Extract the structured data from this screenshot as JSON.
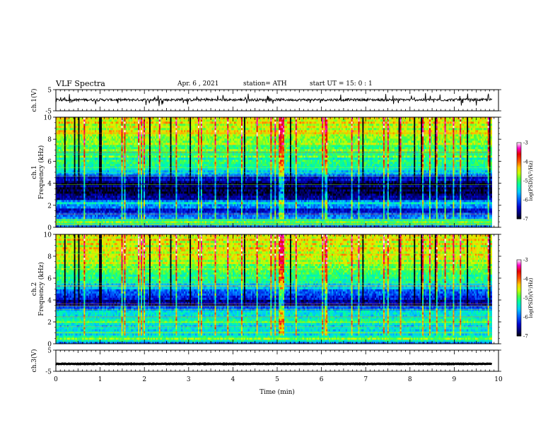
{
  "header": {
    "title": "VLF Spectra",
    "date": "Apr. 6 , 2021",
    "station": "station= ATH",
    "start_ut": "start UT = 15: 0 : 1"
  },
  "chart_data": {
    "type": "heatmap",
    "x_axis": {
      "label": "Time (min)",
      "range": [
        0,
        10
      ],
      "ticks": [
        "0",
        "1",
        "2",
        "3",
        "4",
        "5",
        "6",
        "7",
        "8",
        "9",
        "10"
      ]
    },
    "panels": [
      {
        "id": "ch1-waveform",
        "type": "line",
        "ylabel": "ch.1(V)",
        "ylim": [
          -5,
          5
        ],
        "yticks": [
          "5",
          "-5"
        ],
        "baseline_value": 0.2,
        "noise_amplitude": 1.2,
        "data_extent_min": 9.85
      },
      {
        "id": "ch1-spectrogram",
        "type": "heatmap",
        "ylabel": "ch.1\nFrequency (kHz)",
        "ylim": [
          0,
          10
        ],
        "yticks": [
          "0",
          "2",
          "4",
          "6",
          "8",
          "10"
        ],
        "data_extent_min": 9.85,
        "colorbar": {
          "label": "log(PSD)(V²/Hz)",
          "range": [
            -7,
            -3
          ],
          "ticks": [
            "-3",
            "-4",
            "-5",
            "-6",
            "-7"
          ]
        },
        "profile_by_frequency_khz": [
          {
            "f": 0.0,
            "v": -6.3
          },
          {
            "f": 0.4,
            "v": -4.8
          },
          {
            "f": 0.8,
            "v": -5.6
          },
          {
            "f": 1.2,
            "v": -6.2
          },
          {
            "f": 1.6,
            "v": -6.4
          },
          {
            "f": 2.0,
            "v": -5.8
          },
          {
            "f": 2.2,
            "v": -5.2
          },
          {
            "f": 2.6,
            "v": -6.5
          },
          {
            "f": 3.2,
            "v": -6.7
          },
          {
            "f": 4.0,
            "v": -6.8
          },
          {
            "f": 4.5,
            "v": -6.3
          },
          {
            "f": 5.0,
            "v": -5.6
          },
          {
            "f": 6.0,
            "v": -5.2
          },
          {
            "f": 7.0,
            "v": -4.9
          },
          {
            "f": 8.0,
            "v": -4.6
          },
          {
            "f": 9.0,
            "v": -4.5
          },
          {
            "f": 10.0,
            "v": -4.6
          }
        ]
      },
      {
        "id": "ch2-spectrogram",
        "type": "heatmap",
        "ylabel": "ch.2\nFrequency (kHz)",
        "ylim": [
          0,
          10
        ],
        "yticks": [
          "0",
          "2",
          "4",
          "6",
          "8",
          "10"
        ],
        "data_extent_min": 9.85,
        "colorbar": {
          "label": "log(PSD)(V²/Hz)",
          "range": [
            -7,
            -3
          ],
          "ticks": [
            "-3",
            "-4",
            "-5",
            "-6",
            "-7"
          ]
        },
        "profile_by_frequency_khz": [
          {
            "f": 0.0,
            "v": -6.0
          },
          {
            "f": 0.4,
            "v": -4.9
          },
          {
            "f": 1.0,
            "v": -5.5
          },
          {
            "f": 1.6,
            "v": -5.6
          },
          {
            "f": 2.0,
            "v": -5.0
          },
          {
            "f": 2.5,
            "v": -5.4
          },
          {
            "f": 3.0,
            "v": -5.6
          },
          {
            "f": 3.5,
            "v": -6.4
          },
          {
            "f": 4.0,
            "v": -6.6
          },
          {
            "f": 4.5,
            "v": -6.0
          },
          {
            "f": 5.0,
            "v": -5.7
          },
          {
            "f": 6.0,
            "v": -5.1
          },
          {
            "f": 7.0,
            "v": -4.8
          },
          {
            "f": 8.0,
            "v": -4.6
          },
          {
            "f": 9.0,
            "v": -4.5
          },
          {
            "f": 10.0,
            "v": -4.6
          }
        ]
      },
      {
        "id": "ch3-waveform",
        "type": "line",
        "ylabel": "ch.3(V)",
        "ylim": [
          -5,
          5
        ],
        "yticks": [
          "5",
          "-5"
        ],
        "baseline_value": -1.5,
        "noise_amplitude": 0.25,
        "data_extent_min": 9.85
      }
    ]
  }
}
